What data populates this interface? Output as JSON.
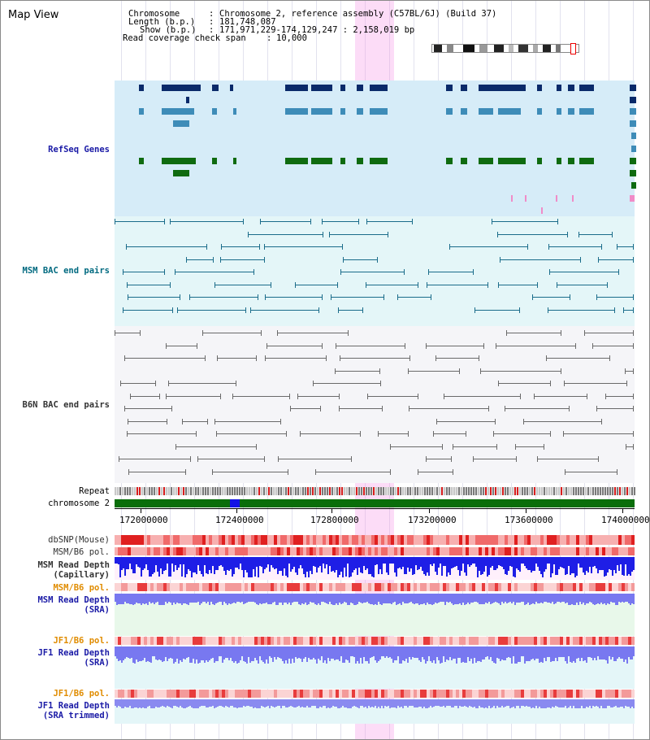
{
  "header": {
    "title": "Map View",
    "chromosome_label": "Chromosome",
    "chromosome_value": "Chromosome 2, reference assembly (C57BL/6J) (Build 37)",
    "length_label": "Length (b.p.)",
    "length_value": "181,748,087",
    "show_label": "Show (b.p.)",
    "show_value": "171,971,229-174,129,247 : 2,158,019 bp",
    "coverage_label": "Read coverage check span",
    "coverage_value": "10,000"
  },
  "tracks": {
    "refseq": "RefSeq Genes",
    "msm_bac": "MSM BAC end pairs",
    "b6n_bac": "B6N BAC end pairs",
    "repeat": "Repeat",
    "chromosome": "chromosome 2",
    "dbsnp": "dbSNP(Mouse)",
    "msm_b6_pol_1": "MSM/B6 pol.",
    "msm_depth_cap_1": "MSM Read Depth",
    "msm_depth_cap_2": "(Capillary)",
    "msm_b6_pol_2": "MSM/B6 pol.",
    "msm_depth_sra_1": "MSM Read Depth",
    "msm_depth_sra_2": "(SRA)",
    "jf1_b6_pol_1": "JF1/B6 pol.",
    "jf1_depth_sra_1": "JF1 Read Depth",
    "jf1_depth_sra_2": "(SRA)",
    "jf1_b6_pol_2": "JF1/B6 pol.",
    "jf1_depth_trim_1": "JF1 Read Depth",
    "jf1_depth_trim_2": "(SRA trimmed)"
  },
  "axis": {
    "ticks": [
      "172000000",
      "172400000",
      "172800000",
      "173200000",
      "173600000",
      "174000000"
    ]
  },
  "colors": {
    "refseq_dark": "#0a2a6a",
    "refseq_mid": "#3e8cb8",
    "refseq_green": "#0f6b10",
    "msm_bac": "#1a6c8a",
    "b6n_bac": "#6a6a6a",
    "highlight": "#f6b8ee",
    "chromosome_bar": "#0a6e0a",
    "depth_capillary": "#1e1ee6",
    "depth_sra": "#7878f0",
    "pol_red": "#e83030"
  }
}
